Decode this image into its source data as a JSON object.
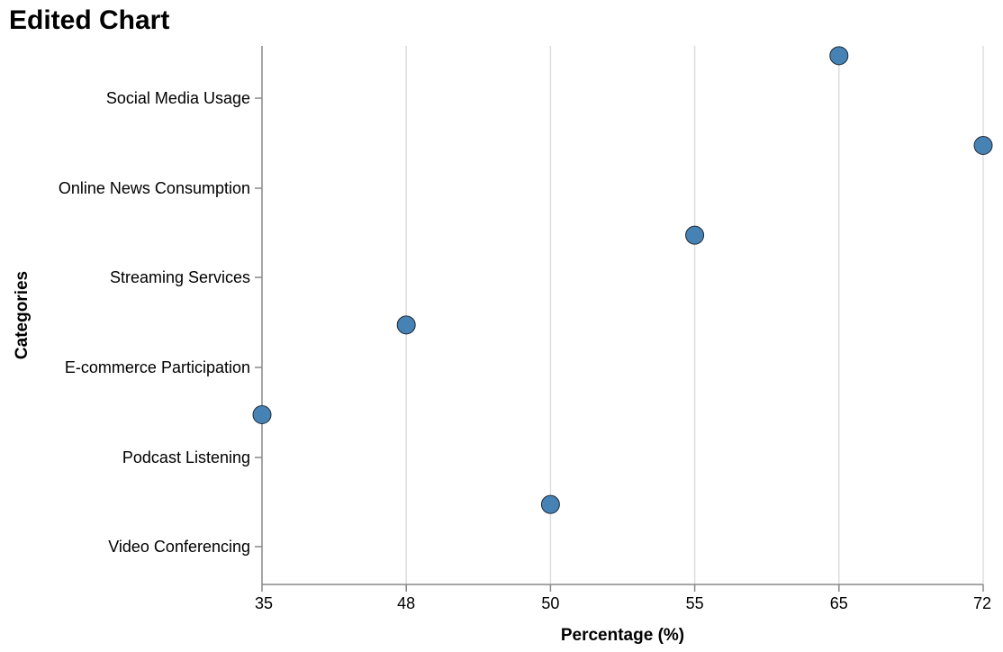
{
  "chart_data": {
    "type": "scatter",
    "title": "Edited Chart",
    "xlabel": "Percentage (%)",
    "ylabel": "Categories",
    "x_scale": "ordinal",
    "x_ticks": [
      "35",
      "48",
      "50",
      "55",
      "65",
      "72"
    ],
    "categories": [
      "Social Media Usage",
      "Online News Consumption",
      "Streaming Services",
      "E-commerce Participation",
      "Podcast Listening",
      "Video Conferencing"
    ],
    "points": [
      {
        "category": "Social Media Usage",
        "x": 65
      },
      {
        "category": "Online News Consumption",
        "x": 72
      },
      {
        "category": "Streaming Services",
        "x": 55
      },
      {
        "category": "E-commerce Participation",
        "x": 48
      },
      {
        "category": "Podcast Listening",
        "x": 35
      },
      {
        "category": "Video Conferencing",
        "x": 50
      }
    ],
    "grid": "vertical",
    "legend": "none",
    "colors": {
      "point_fill": "#4682b4",
      "point_stroke": "#1f2a36",
      "grid": "#dddddd",
      "axis": "#888888"
    }
  }
}
